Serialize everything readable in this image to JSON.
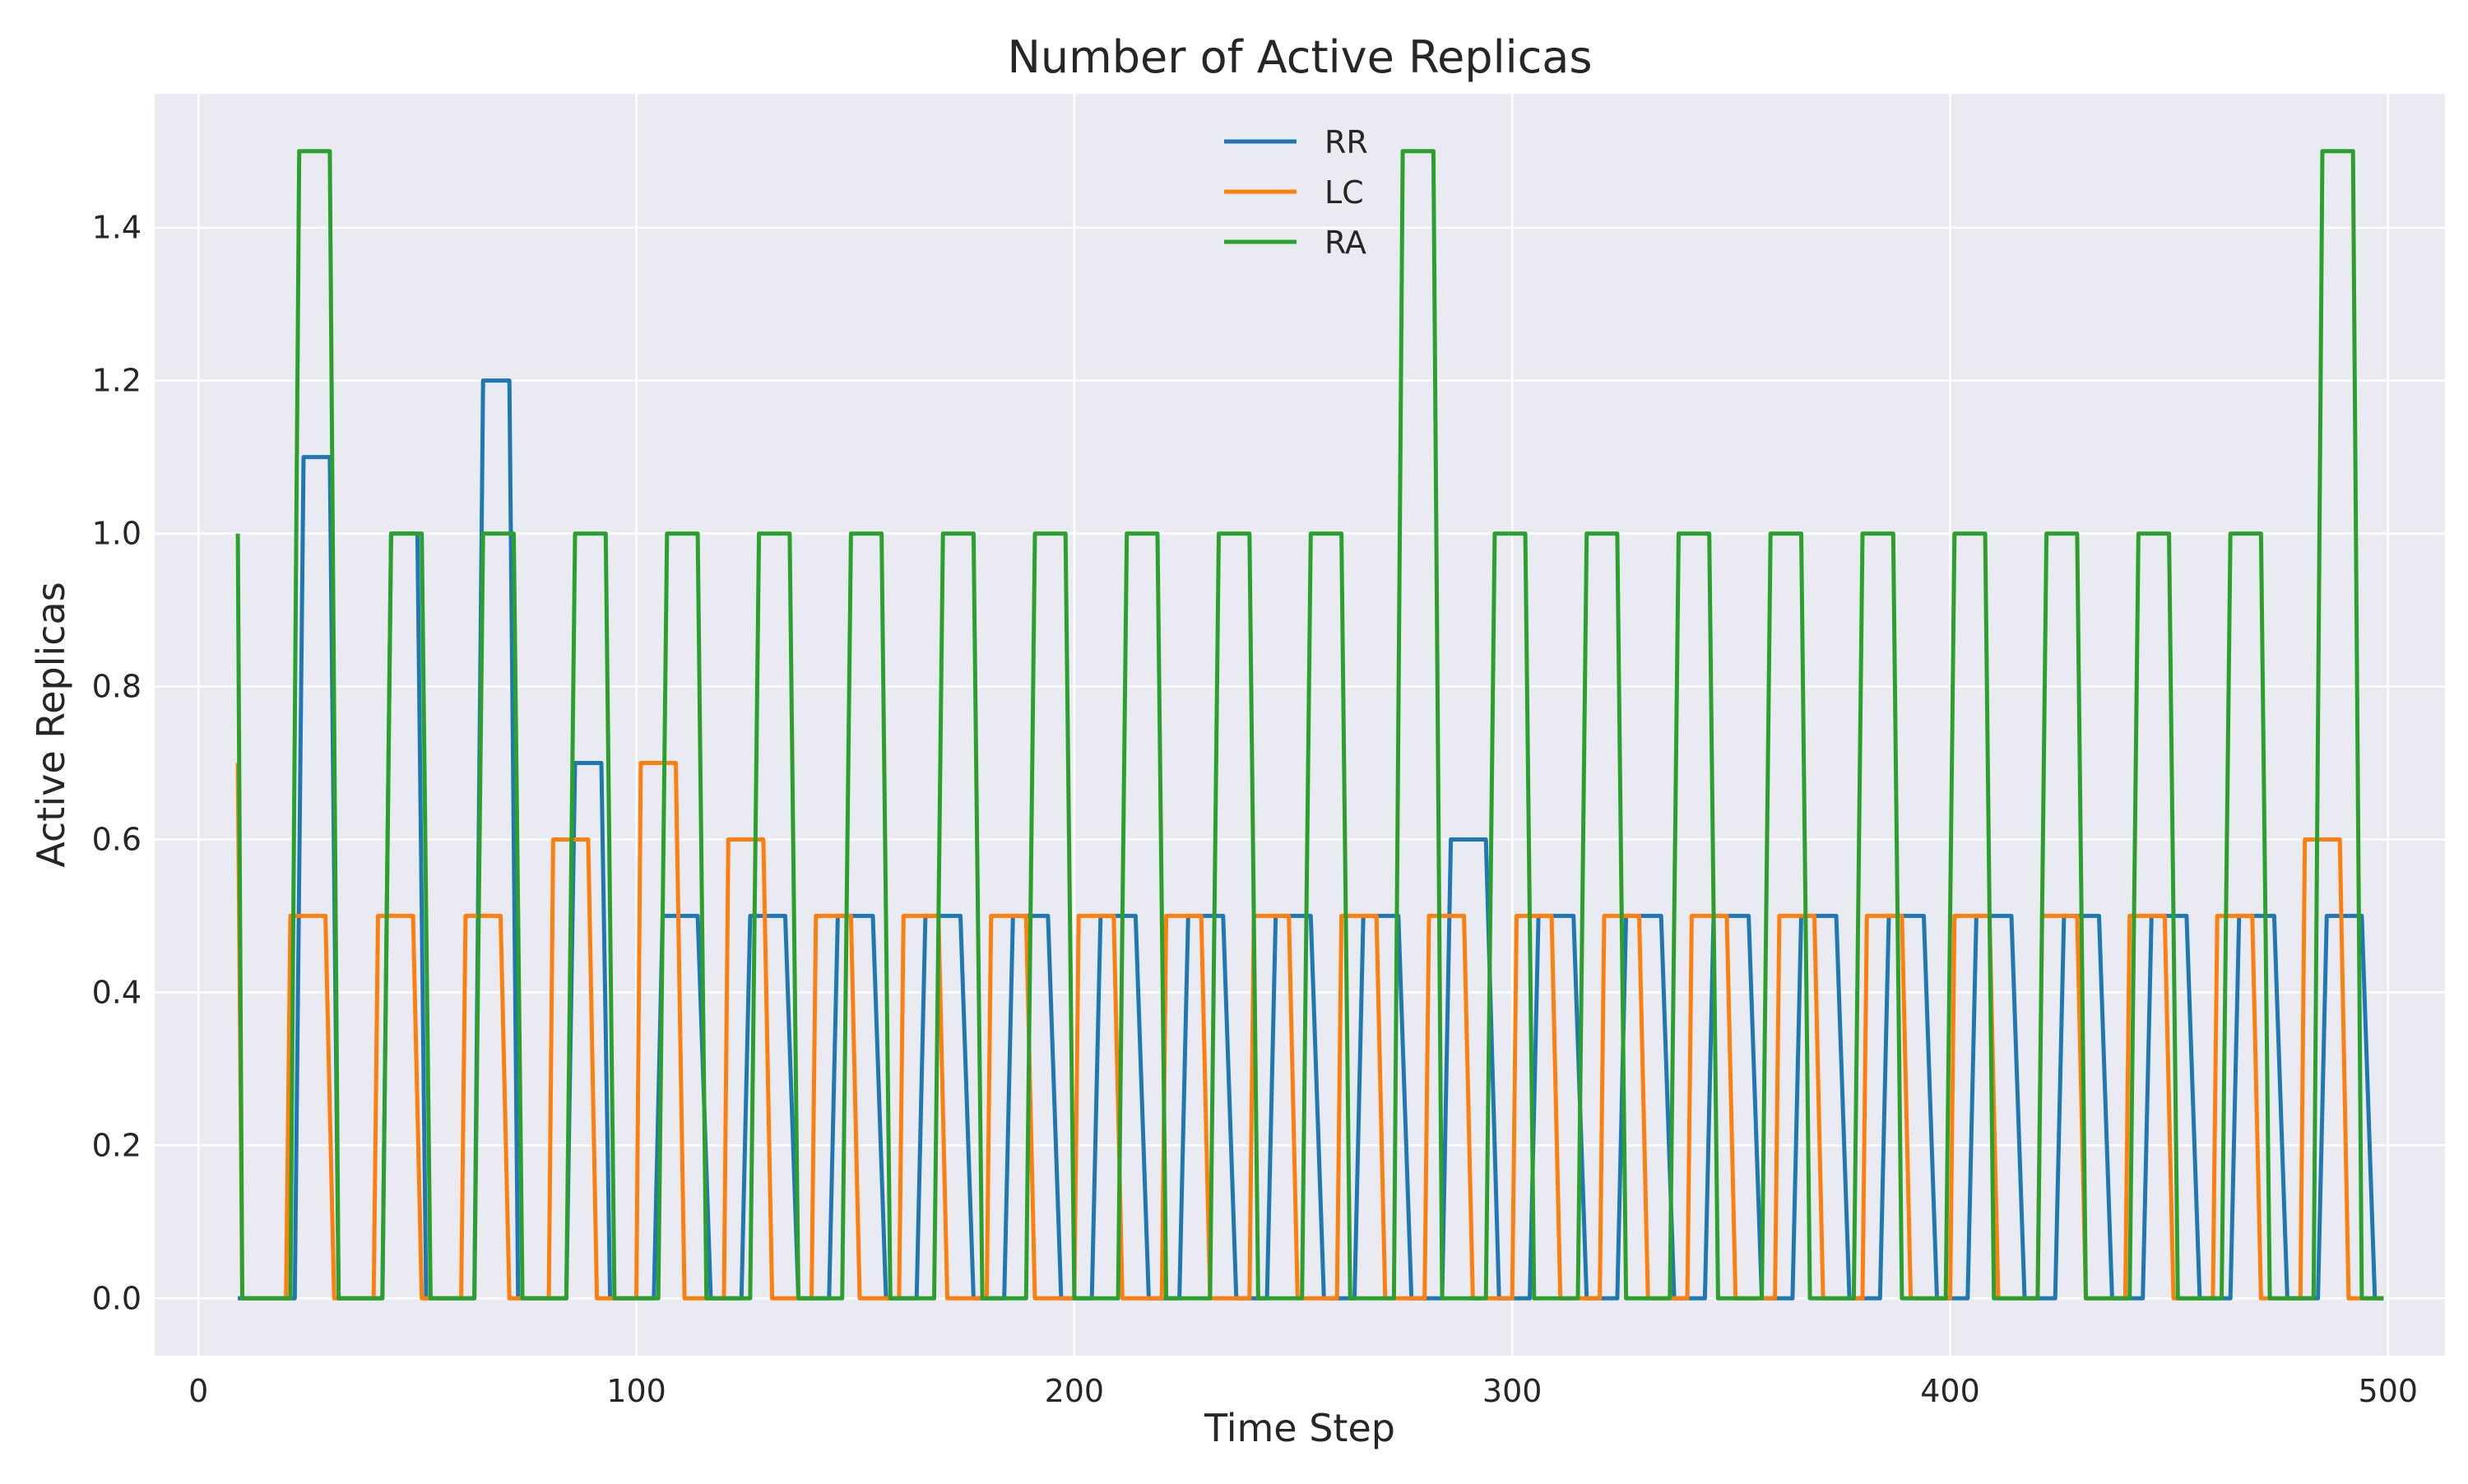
{
  "chart_data": {
    "type": "line",
    "title": "Number of Active Replicas",
    "xlabel": "Time Step",
    "ylabel": "Active Replicas",
    "xlim": [
      -10,
      513
    ],
    "ylim": [
      -0.075,
      1.575
    ],
    "xticks": [
      0,
      100,
      200,
      300,
      400,
      500
    ],
    "yticks": [
      0.0,
      0.2,
      0.4,
      0.6,
      0.8,
      1.0,
      1.2,
      1.4
    ],
    "grid": true,
    "legend_position": "top-center",
    "series": [
      {
        "name": "RR",
        "color": "#1f77b4",
        "pulses": [
          [
            22,
            24,
            30,
            32,
            1.1
          ],
          [
            42,
            44,
            50,
            52,
            1.0
          ],
          [
            63,
            65,
            71,
            73,
            1.2
          ],
          [
            84,
            86,
            92,
            94,
            0.7
          ],
          [
            104,
            106,
            114,
            117,
            0.5
          ],
          [
            124,
            126,
            134,
            137,
            0.5
          ],
          [
            144,
            146,
            154,
            157,
            0.5
          ],
          [
            164,
            166,
            174,
            177,
            0.5
          ],
          [
            184,
            186,
            194,
            197,
            0.5
          ],
          [
            204,
            206,
            214,
            217,
            0.5
          ],
          [
            224,
            226,
            234,
            237,
            0.5
          ],
          [
            244,
            246,
            254,
            257,
            0.5
          ],
          [
            264,
            266,
            274,
            277,
            0.5
          ],
          [
            284,
            286,
            294,
            297,
            0.6
          ],
          [
            304,
            306,
            314,
            317,
            0.5
          ],
          [
            324,
            326,
            334,
            337,
            0.5
          ],
          [
            344,
            346,
            354,
            357,
            0.5
          ],
          [
            364,
            366,
            374,
            377,
            0.5
          ],
          [
            384,
            386,
            394,
            397,
            0.5
          ],
          [
            404,
            406,
            414,
            417,
            0.5
          ],
          [
            424,
            426,
            434,
            437,
            0.5
          ],
          [
            444,
            446,
            454,
            457,
            0.5
          ],
          [
            464,
            466,
            474,
            477,
            0.5
          ],
          [
            484,
            486,
            494,
            497,
            0.5
          ]
        ]
      },
      {
        "name": "LC",
        "color": "#ff7f0e",
        "start_value": 0.7,
        "pulses": [
          [
            20,
            21,
            29,
            31,
            0.5
          ],
          [
            40,
            41,
            49,
            51,
            0.5
          ],
          [
            60,
            61,
            69,
            71,
            0.5
          ],
          [
            80,
            81,
            89,
            91,
            0.6
          ],
          [
            100,
            101,
            109,
            111,
            0.7
          ],
          [
            120,
            121,
            129,
            131,
            0.6
          ],
          [
            140,
            141,
            149,
            151,
            0.5
          ],
          [
            160,
            161,
            169,
            171,
            0.5
          ],
          [
            180,
            181,
            189,
            191,
            0.5
          ],
          [
            200,
            201,
            209,
            211,
            0.5
          ],
          [
            220,
            221,
            229,
            231,
            0.5
          ],
          [
            240,
            241,
            249,
            251,
            0.5
          ],
          [
            260,
            261,
            269,
            271,
            0.5
          ],
          [
            280,
            281,
            289,
            291,
            0.5
          ],
          [
            300,
            301,
            309,
            311,
            0.5
          ],
          [
            320,
            321,
            329,
            331,
            0.5
          ],
          [
            340,
            341,
            349,
            351,
            0.5
          ],
          [
            360,
            361,
            369,
            371,
            0.5
          ],
          [
            380,
            381,
            389,
            391,
            0.5
          ],
          [
            400,
            401,
            409,
            411,
            0.5
          ],
          [
            420,
            421,
            429,
            431,
            0.5
          ],
          [
            440,
            441,
            449,
            451,
            0.5
          ],
          [
            460,
            461,
            469,
            471,
            0.5
          ],
          [
            480,
            481,
            489,
            491,
            0.6
          ]
        ]
      },
      {
        "name": "RA",
        "color": "#2ca02c",
        "start_value": 1.0,
        "pulses": [
          [
            21,
            23,
            30,
            32,
            1.5
          ],
          [
            42,
            44,
            51,
            53,
            1.0
          ],
          [
            63,
            65,
            72,
            74,
            1.0
          ],
          [
            84,
            86,
            93,
            95,
            1.0
          ],
          [
            105,
            107,
            114,
            116,
            1.0
          ],
          [
            126,
            128,
            135,
            137,
            1.0
          ],
          [
            147,
            149,
            156,
            158,
            1.0
          ],
          [
            168,
            170,
            177,
            179,
            1.0
          ],
          [
            189,
            191,
            198,
            200,
            1.0
          ],
          [
            210,
            212,
            219,
            221,
            1.0
          ],
          [
            231,
            233,
            240,
            242,
            1.0
          ],
          [
            252,
            254,
            261,
            263,
            1.0
          ],
          [
            273,
            275,
            282,
            284,
            1.5
          ],
          [
            294,
            296,
            303,
            305,
            1.0
          ],
          [
            315,
            317,
            324,
            326,
            1.0
          ],
          [
            336,
            338,
            345,
            347,
            1.0
          ],
          [
            357,
            359,
            366,
            368,
            1.0
          ],
          [
            378,
            380,
            387,
            389,
            1.0
          ],
          [
            399,
            401,
            408,
            410,
            1.0
          ],
          [
            420,
            422,
            429,
            431,
            1.0
          ],
          [
            441,
            443,
            450,
            452,
            1.0
          ],
          [
            462,
            464,
            471,
            473,
            1.0
          ],
          [
            483,
            485,
            492,
            494,
            1.5
          ]
        ]
      }
    ],
    "x_start": 9,
    "x_end": 499
  }
}
